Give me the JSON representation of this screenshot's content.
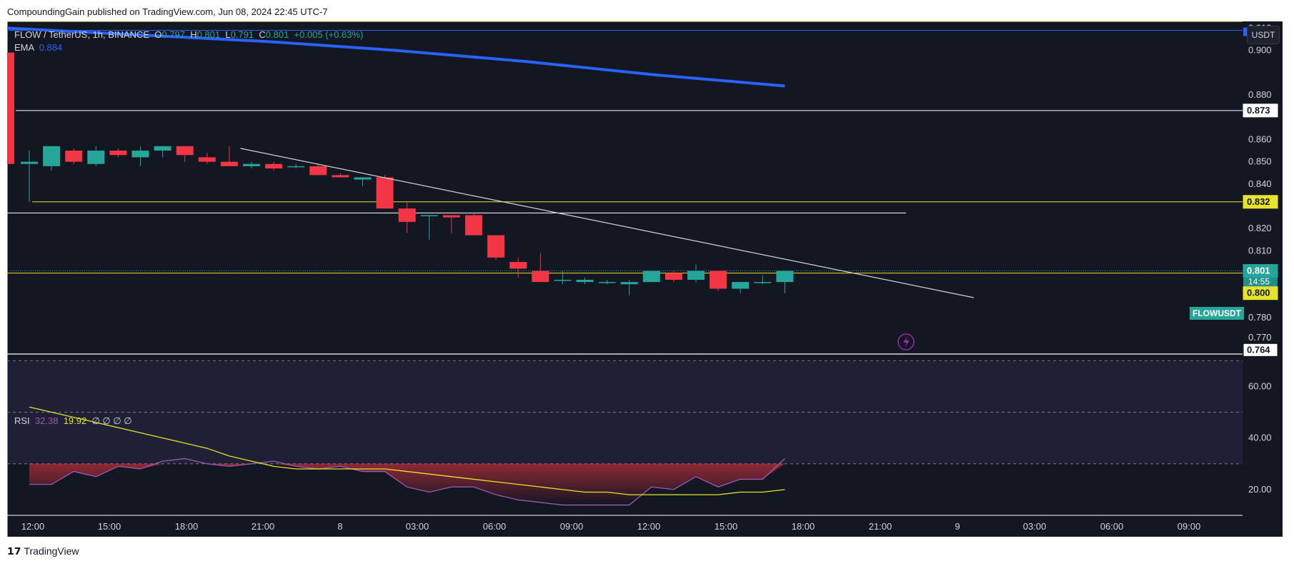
{
  "header": {
    "published_text": "CompoundingGain published on TradingView.com, Jun 08, 2024 22:45 UTC-7"
  },
  "legend": {
    "symbol": "FLOW / TetherUS, 1h, BINANCE",
    "o_label": "O",
    "o_value": "0.797",
    "h_label": "H",
    "h_value": "0.801",
    "l_label": "L",
    "l_value": "0.791",
    "c_label": "C",
    "c_value": "0.801",
    "change": "+0.005 (+0.63%)",
    "ema_label": "EMA",
    "ema_value": "0.884"
  },
  "rsi_legend": {
    "label": "RSI",
    "rsi_value": "32.38",
    "ma_value": "19.92",
    "extras": "∅ ∅ ∅ ∅"
  },
  "price_scale": {
    "currency": "USDT",
    "ticks": [
      "0.900",
      "0.880",
      "0.860",
      "0.850",
      "0.840",
      "0.820",
      "0.810",
      "0.780"
    ],
    "rsi_ticks": [
      "60.00",
      "40.00",
      "20.00"
    ],
    "partial_top_tick": "0.910",
    "partial_bottom_tick": "0.770"
  },
  "markers": {
    "line_873": "0.873",
    "line_832": "0.832",
    "last_price": "0.801",
    "countdown": "14:55",
    "line_800": "0.800",
    "bottom": "0.764",
    "symbol_tag": "FLOWUSDT"
  },
  "footer": {
    "logo": "𝟭𝟳",
    "brand": "TradingView"
  },
  "colors": {
    "background": "#131722",
    "up": "#26a69a",
    "down": "#f23645",
    "ema": "#2962ff",
    "rsi": "#9c5bb5",
    "rsi_ma": "#e6e32b",
    "trendline": "#d1d4dc",
    "level_yellow": "#e6e32b",
    "level_white": "#ffffff"
  },
  "chart_data": [
    {
      "type": "candlestick",
      "title": "FLOW / TetherUS, 1h, BINANCE",
      "x_ticks": [
        "12:00",
        "15:00",
        "18:00",
        "21:00",
        "8",
        "03:00",
        "06:00",
        "09:00",
        "12:00",
        "15:00",
        "18:00",
        "21:00",
        "9",
        "03:00",
        "06:00",
        "09:00"
      ],
      "ylim": [
        0.764,
        0.913
      ],
      "candles": [
        {
          "o": 0.849,
          "h": 0.855,
          "l": 0.832,
          "c": 0.85
        },
        {
          "o": 0.848,
          "h": 0.857,
          "l": 0.846,
          "c": 0.857
        },
        {
          "o": 0.855,
          "h": 0.856,
          "l": 0.849,
          "c": 0.85
        },
        {
          "o": 0.849,
          "h": 0.857,
          "l": 0.848,
          "c": 0.855
        },
        {
          "o": 0.855,
          "h": 0.856,
          "l": 0.852,
          "c": 0.853
        },
        {
          "o": 0.852,
          "h": 0.857,
          "l": 0.848,
          "c": 0.855
        },
        {
          "o": 0.855,
          "h": 0.857,
          "l": 0.852,
          "c": 0.857
        },
        {
          "o": 0.857,
          "h": 0.857,
          "l": 0.85,
          "c": 0.853
        },
        {
          "o": 0.852,
          "h": 0.854,
          "l": 0.849,
          "c": 0.85
        },
        {
          "o": 0.85,
          "h": 0.857,
          "l": 0.848,
          "c": 0.848
        },
        {
          "o": 0.848,
          "h": 0.85,
          "l": 0.847,
          "c": 0.849
        },
        {
          "o": 0.849,
          "h": 0.85,
          "l": 0.846,
          "c": 0.847
        },
        {
          "o": 0.848,
          "h": 0.849,
          "l": 0.847,
          "c": 0.848
        },
        {
          "o": 0.848,
          "h": 0.849,
          "l": 0.844,
          "c": 0.844
        },
        {
          "o": 0.844,
          "h": 0.845,
          "l": 0.843,
          "c": 0.843
        },
        {
          "o": 0.842,
          "h": 0.843,
          "l": 0.839,
          "c": 0.843
        },
        {
          "o": 0.843,
          "h": 0.844,
          "l": 0.829,
          "c": 0.829
        },
        {
          "o": 0.829,
          "h": 0.832,
          "l": 0.818,
          "c": 0.823
        },
        {
          "o": 0.826,
          "h": 0.826,
          "l": 0.815,
          "c": 0.826
        },
        {
          "o": 0.826,
          "h": 0.826,
          "l": 0.818,
          "c": 0.825
        },
        {
          "o": 0.826,
          "h": 0.827,
          "l": 0.817,
          "c": 0.817
        },
        {
          "o": 0.817,
          "h": 0.817,
          "l": 0.806,
          "c": 0.807
        },
        {
          "o": 0.805,
          "h": 0.807,
          "l": 0.798,
          "c": 0.802
        },
        {
          "o": 0.801,
          "h": 0.809,
          "l": 0.797,
          "c": 0.796
        },
        {
          "o": 0.797,
          "h": 0.801,
          "l": 0.795,
          "c": 0.797
        },
        {
          "o": 0.796,
          "h": 0.798,
          "l": 0.795,
          "c": 0.797
        },
        {
          "o": 0.796,
          "h": 0.797,
          "l": 0.795,
          "c": 0.796
        },
        {
          "o": 0.795,
          "h": 0.797,
          "l": 0.79,
          "c": 0.796
        },
        {
          "o": 0.796,
          "h": 0.801,
          "l": 0.796,
          "c": 0.801
        },
        {
          "o": 0.8,
          "h": 0.801,
          "l": 0.796,
          "c": 0.797
        },
        {
          "o": 0.797,
          "h": 0.804,
          "l": 0.796,
          "c": 0.801
        },
        {
          "o": 0.801,
          "h": 0.801,
          "l": 0.792,
          "c": 0.793
        },
        {
          "o": 0.793,
          "h": 0.796,
          "l": 0.791,
          "c": 0.796
        },
        {
          "o": 0.796,
          "h": 0.799,
          "l": 0.795,
          "c": 0.796
        },
        {
          "o": 0.796,
          "h": 0.801,
          "l": 0.791,
          "c": 0.801
        }
      ],
      "ema": [
        0.91,
        0.907,
        0.904,
        0.9,
        0.895,
        0.889,
        0.884
      ],
      "levels": [
        0.873,
        0.832,
        0.827,
        0.8
      ],
      "trendline": [
        {
          "x": 9.5,
          "y": 0.856
        },
        {
          "x": 42.5,
          "y": 0.789
        }
      ]
    },
    {
      "type": "line",
      "title": "RSI",
      "ylim": [
        10,
        72
      ],
      "bands": [
        30,
        50,
        70
      ],
      "series": [
        {
          "name": "RSI",
          "values": [
            22,
            22,
            27,
            25,
            29,
            28,
            31,
            32,
            30,
            29,
            30,
            31,
            29,
            28,
            29,
            27,
            27,
            21,
            19,
            21,
            21,
            18,
            16,
            15,
            14,
            14,
            14,
            14,
            21,
            20,
            25,
            21,
            24,
            24,
            32
          ]
        },
        {
          "name": "RSI-based MA",
          "values": [
            52,
            50,
            48,
            46,
            44,
            42,
            40,
            38,
            36,
            33,
            31,
            29,
            28,
            28,
            28,
            28,
            28,
            27,
            26,
            25,
            24,
            23,
            22,
            21,
            20,
            19,
            19,
            18,
            18,
            18,
            18,
            18,
            19,
            19,
            20
          ]
        }
      ]
    }
  ]
}
